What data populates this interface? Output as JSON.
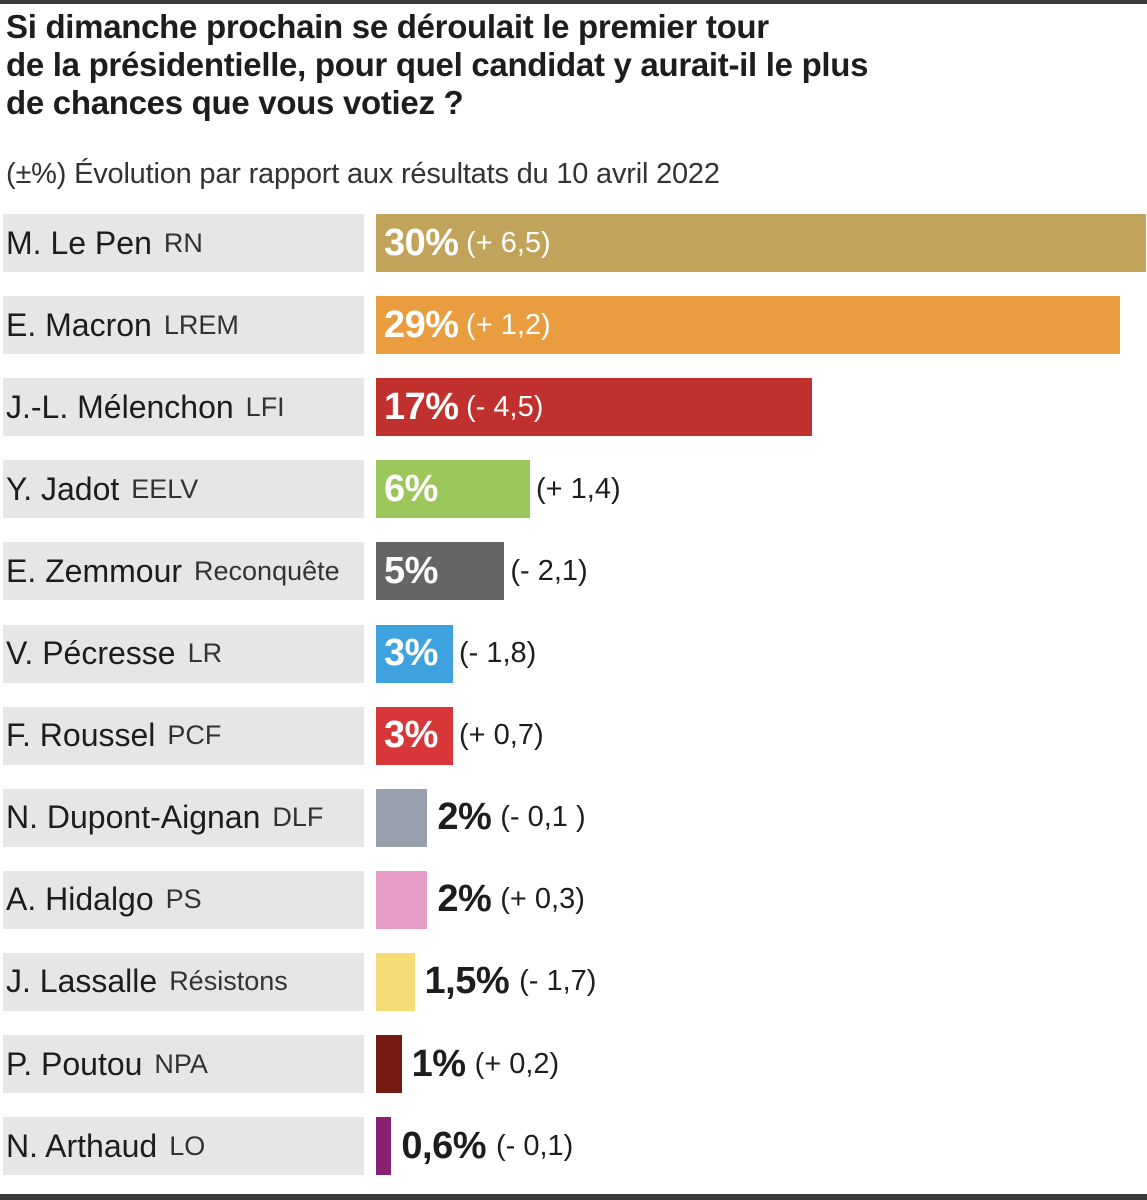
{
  "title_lines": [
    "Si dimanche prochain se déroulait le premier tour",
    "de la présidentielle, pour quel candidat y aurait-il le plus",
    "de chances que vous votiez ?"
  ],
  "subtitle": "(±%) Évolution par rapport aux résultats du 10 avril 2022",
  "chart_data": {
    "type": "bar",
    "orientation": "horizontal",
    "title": "Si dimanche prochain se déroulait le premier tour de la présidentielle, pour quel candidat y aurait-il le plus de chances que vous votiez ?",
    "xlabel": "",
    "ylabel": "",
    "xlim": [
      0,
      30
    ],
    "grid": false,
    "categories": [
      {
        "name": "M. Le Pen",
        "party": "RN"
      },
      {
        "name": "E. Macron",
        "party": "LREM"
      },
      {
        "name": "J.-L. Mélenchon",
        "party": "LFI"
      },
      {
        "name": "Y. Jadot",
        "party": "EELV"
      },
      {
        "name": "E. Zemmour",
        "party": "Reconquête"
      },
      {
        "name": "V. Pécresse",
        "party": "LR"
      },
      {
        "name": "F. Roussel",
        "party": "PCF"
      },
      {
        "name": "N. Dupont-Aignan",
        "party": "DLF"
      },
      {
        "name": "A. Hidalgo",
        "party": "PS"
      },
      {
        "name": "J. Lassalle",
        "party": "Résistons"
      },
      {
        "name": "P. Poutou",
        "party": "NPA"
      },
      {
        "name": "N. Arthaud",
        "party": "LO"
      }
    ],
    "values": [
      30,
      29,
      17,
      6,
      5,
      3,
      3,
      2,
      2,
      1.5,
      1,
      0.6
    ],
    "value_labels": [
      "30%",
      "29%",
      "17%",
      "6%",
      "5%",
      "3%",
      "3%",
      "2%",
      "2%",
      "1,5%",
      "1%",
      "0,6%"
    ],
    "changes": [
      "(+ 6,5)",
      "(+ 1,2)",
      "(- 4,5)",
      "(+ 1,4)",
      "(- 2,1)",
      "(- 1,8)",
      "(+ 0,7)",
      "(- 0,1 )",
      "(+ 0,3)",
      "(- 1,7)",
      "(+ 0,2)",
      "(- 0,1)"
    ],
    "colors": [
      "#c1a35a",
      "#ea9d3f",
      "#c0302c",
      "#9bc75a",
      "#656565",
      "#3ea2de",
      "#d8373a",
      "#98a0ad",
      "#e79cc5",
      "#f6dc74",
      "#751a12",
      "#8a2072"
    ]
  }
}
